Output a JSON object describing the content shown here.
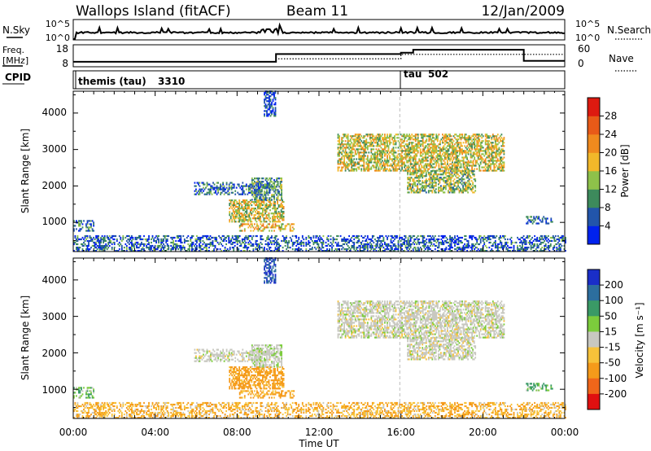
{
  "header": {
    "station_title": "Wallops Island (fitACF)",
    "beam_label": "Beam 11",
    "date_label": "12/Jan/2009"
  },
  "noise_panel": {
    "left_label": "N.Sky",
    "right_label": "N.Search",
    "left_top_tick": "10^5",
    "left_bottom_tick": "10^0",
    "right_top_tick": "10^5",
    "right_bottom_tick": "10^0"
  },
  "freq_panel": {
    "left_label_line1": "Freq.",
    "left_label_line2": "[MHz]",
    "right_label": "Nave",
    "left_ticks": [
      "18",
      "8"
    ],
    "right_ticks": [
      "60",
      "0"
    ]
  },
  "cpid_panel": {
    "label": "CPID",
    "modes": [
      {
        "name": "themis (tau)",
        "id": "3310",
        "start_hour": 0
      },
      {
        "name": "tau",
        "id": "502",
        "start_hour": 16.1
      }
    ]
  },
  "x_axis": {
    "title": "Time UT",
    "tick_labels": [
      "00:00",
      "04:00",
      "08:00",
      "12:00",
      "16:00",
      "20:00",
      "00:00"
    ],
    "range_hours": [
      0,
      24
    ]
  },
  "power_panel": {
    "ylabel": "Slant Range [km]",
    "ytick_labels": [
      "1000",
      "2000",
      "3000",
      "4000"
    ],
    "colorbar_label": "Power [dB]",
    "colorbar_ticks": [
      "4",
      "8",
      "12",
      "16",
      "20",
      "24",
      "28"
    ],
    "colors": [
      "#0022ee",
      "#2255aa",
      "#3d8a5c",
      "#8ec14a",
      "#f2b82a",
      "#f08a1e",
      "#e85a18",
      "#dd1a10"
    ]
  },
  "velocity_panel": {
    "ylabel": "Slant Range [km]",
    "ytick_labels": [
      "1000",
      "2000",
      "3000",
      "4000"
    ],
    "colorbar_label": "Velocity [m s⁻¹]",
    "colorbar_ticks": [
      "200",
      "100",
      "50",
      "15",
      "-15",
      "-50",
      "-100",
      "-200"
    ],
    "colors": [
      "#1a2ec8",
      "#2c6e9e",
      "#3a9a66",
      "#7ccc3c",
      "#c8c8c0",
      "#f7c23a",
      "#f59a1a",
      "#f0661a",
      "#e01010"
    ]
  },
  "chart_data": {
    "type": "heatmap",
    "title": "Wallops Island (fitACF)",
    "xlabel": "Time UT",
    "ylabel": "Slant Range [km]",
    "xlim_hours": [
      0,
      24
    ],
    "ylim_km": [
      200,
      4600
    ],
    "frequency_mhz_steps": [
      {
        "start_hour": 0,
        "end_hour": 9.9,
        "value": 9.5
      },
      {
        "start_hour": 9.9,
        "end_hour": 16.0,
        "value": 14.0
      },
      {
        "start_hour": 16.0,
        "end_hour": 16.6,
        "value": 14.8
      },
      {
        "start_hour": 16.6,
        "end_hour": 22.0,
        "value": 16.5
      },
      {
        "start_hour": 22.0,
        "end_hour": 24.0,
        "value": 10.0
      }
    ],
    "scatter_regions": [
      {
        "t_start": 0.0,
        "t_end": 1.0,
        "r_min": 750,
        "r_max": 1050,
        "power_db": 10,
        "velocity": 30
      },
      {
        "t_start": 0.0,
        "t_end": 24.0,
        "r_min": 200,
        "r_max": 650,
        "power_db": 8,
        "velocity": -30
      },
      {
        "t_start": 5.9,
        "t_end": 9.6,
        "r_min": 1750,
        "r_max": 2100,
        "power_db": 9,
        "velocity": 0
      },
      {
        "t_start": 7.6,
        "t_end": 10.3,
        "r_min": 1000,
        "r_max": 1600,
        "power_db": 18,
        "velocity": -45
      },
      {
        "t_start": 8.1,
        "t_end": 10.8,
        "r_min": 750,
        "r_max": 950,
        "power_db": 20,
        "velocity": -40
      },
      {
        "t_start": 8.7,
        "t_end": 10.2,
        "r_min": 1600,
        "r_max": 2200,
        "power_db": 12,
        "velocity": 5
      },
      {
        "t_start": 9.3,
        "t_end": 9.9,
        "r_min": 3900,
        "r_max": 4600,
        "power_db": 6,
        "velocity": 150
      },
      {
        "t_start": 12.9,
        "t_end": 21.0,
        "r_min": 2400,
        "r_max": 3400,
        "power_db": 18,
        "velocity": 0
      },
      {
        "t_start": 16.3,
        "t_end": 19.6,
        "r_min": 1800,
        "r_max": 2400,
        "power_db": 16,
        "velocity": 0
      },
      {
        "t_start": 22.1,
        "t_end": 23.4,
        "r_min": 950,
        "r_max": 1150,
        "power_db": 8,
        "velocity": 30
      }
    ]
  }
}
